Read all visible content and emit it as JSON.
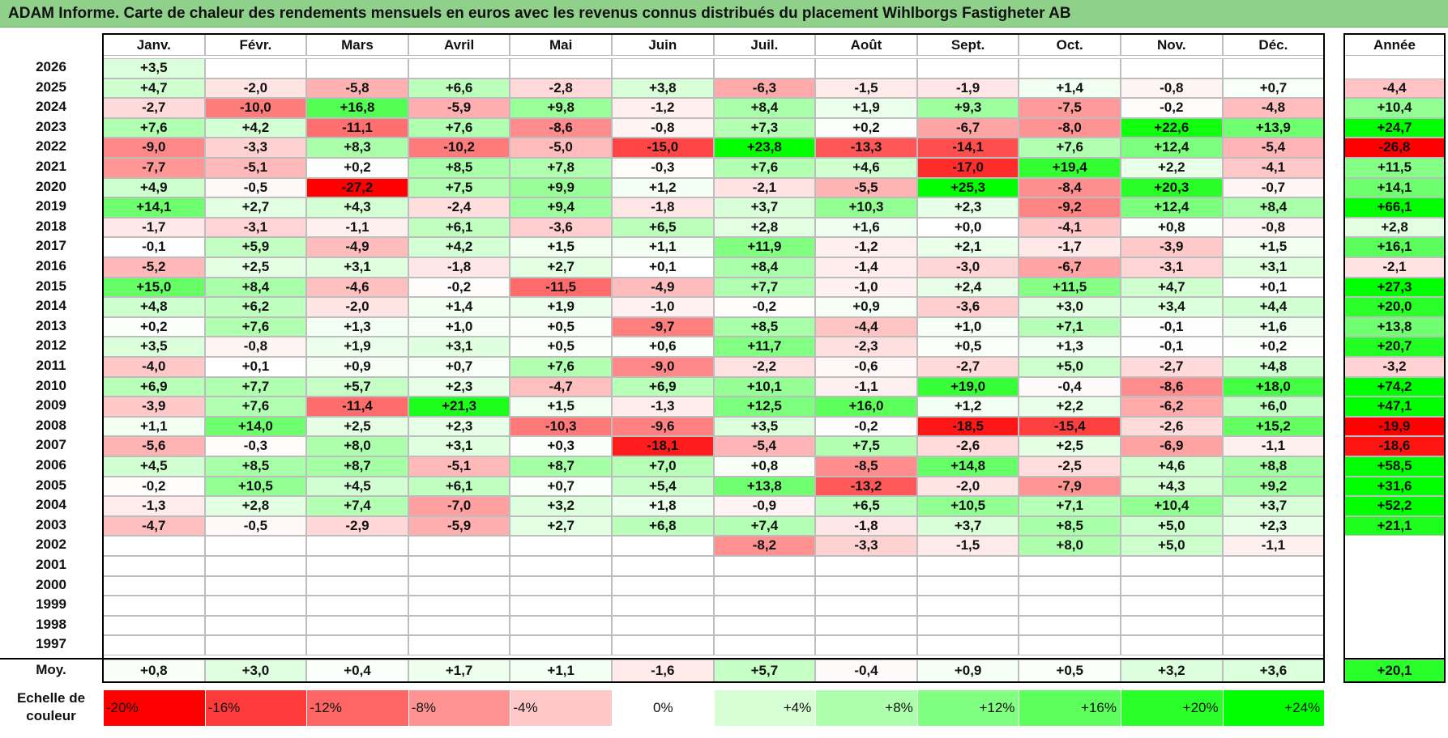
{
  "title": "ADAM Informe. Carte de chaleur des rendements mensuels en euros avec les revenus connus distribués du placement Wihlborgs Fastigheter AB",
  "chart_data": {
    "type": "heatmap",
    "title": "ADAM Informe. Carte de chaleur des rendements mensuels en euros avec les revenus connus distribués du placement Wihlborgs Fastigheter AB",
    "months": [
      "Janv.",
      "Févr.",
      "Mars",
      "Avril",
      "Mai",
      "Juin",
      "Juil.",
      "Août",
      "Sept.",
      "Oct.",
      "Nov.",
      "Déc."
    ],
    "year_header": "Année",
    "rows": [
      {
        "year": "2026",
        "values": [
          "+3,5",
          "",
          "",
          "",
          "",
          "",
          "",
          "",
          "",
          "",
          "",
          ""
        ],
        "annual": ""
      },
      {
        "year": "2025",
        "values": [
          "+4,7",
          "-2,0",
          "-5,8",
          "+6,6",
          "-2,8",
          "+3,8",
          "-6,3",
          "-1,5",
          "-1,9",
          "+1,4",
          "-0,8",
          "+0,7"
        ],
        "annual": "-4,4"
      },
      {
        "year": "2024",
        "values": [
          "-2,7",
          "-10,0",
          "+16,8",
          "-5,9",
          "+9,8",
          "-1,2",
          "+8,4",
          "+1,9",
          "+9,3",
          "-7,5",
          "-0,2",
          "-4,8"
        ],
        "annual": "+10,4"
      },
      {
        "year": "2023",
        "values": [
          "+7,6",
          "+4,2",
          "-11,1",
          "+7,6",
          "-8,6",
          "-0,8",
          "+7,3",
          "+0,2",
          "-6,7",
          "-8,0",
          "+22,6",
          "+13,9"
        ],
        "annual": "+24,7"
      },
      {
        "year": "2022",
        "values": [
          "-9,0",
          "-3,3",
          "+8,3",
          "-10,2",
          "-5,0",
          "-15,0",
          "+23,8",
          "-13,3",
          "-14,1",
          "+7,6",
          "+12,4",
          "-5,4"
        ],
        "annual": "-26,8"
      },
      {
        "year": "2021",
        "values": [
          "-7,7",
          "-5,1",
          "+0,2",
          "+8,5",
          "+7,8",
          "-0,3",
          "+7,6",
          "+4,6",
          "-17,0",
          "+19,4",
          "+2,2",
          "-4,1"
        ],
        "annual": "+11,5"
      },
      {
        "year": "2020",
        "values": [
          "+4,9",
          "-0,5",
          "-27,2",
          "+7,5",
          "+9,9",
          "+1,2",
          "-2,1",
          "-5,5",
          "+25,3",
          "-8,4",
          "+20,3",
          "-0,7"
        ],
        "annual": "+14,1"
      },
      {
        "year": "2019",
        "values": [
          "+14,1",
          "+2,7",
          "+4,3",
          "-2,4",
          "+9,4",
          "-1,8",
          "+3,7",
          "+10,3",
          "+2,3",
          "-9,2",
          "+12,4",
          "+8,4"
        ],
        "annual": "+66,1"
      },
      {
        "year": "2018",
        "values": [
          "-1,7",
          "-3,1",
          "-1,1",
          "+6,1",
          "-3,6",
          "+6,5",
          "+2,8",
          "+1,6",
          "+0,0",
          "-4,1",
          "+0,8",
          "-0,8"
        ],
        "annual": "+2,8"
      },
      {
        "year": "2017",
        "values": [
          "-0,1",
          "+5,9",
          "-4,9",
          "+4,2",
          "+1,5",
          "+1,1",
          "+11,9",
          "-1,2",
          "+2,1",
          "-1,7",
          "-3,9",
          "+1,5"
        ],
        "annual": "+16,1"
      },
      {
        "year": "2016",
        "values": [
          "-5,2",
          "+2,5",
          "+3,1",
          "-1,8",
          "+2,7",
          "+0,1",
          "+8,4",
          "-1,4",
          "-3,0",
          "-6,7",
          "-3,1",
          "+3,1"
        ],
        "annual": "-2,1"
      },
      {
        "year": "2015",
        "values": [
          "+15,0",
          "+8,4",
          "-4,6",
          "-0,2",
          "-11,5",
          "-4,9",
          "+7,7",
          "-1,0",
          "+2,4",
          "+11,5",
          "+4,7",
          "+0,1"
        ],
        "annual": "+27,3"
      },
      {
        "year": "2014",
        "values": [
          "+4,8",
          "+6,2",
          "-2,0",
          "+1,4",
          "+1,9",
          "-1,0",
          "-0,2",
          "+0,9",
          "-3,6",
          "+3,0",
          "+3,4",
          "+4,4"
        ],
        "annual": "+20,0"
      },
      {
        "year": "2013",
        "values": [
          "+0,2",
          "+7,6",
          "+1,3",
          "+1,0",
          "+0,5",
          "-9,7",
          "+8,5",
          "-4,4",
          "+1,0",
          "+7,1",
          "-0,1",
          "+1,6"
        ],
        "annual": "+13,8"
      },
      {
        "year": "2012",
        "values": [
          "+3,5",
          "-0,8",
          "+1,9",
          "+3,1",
          "+0,5",
          "+0,6",
          "+11,7",
          "-2,3",
          "+0,5",
          "+1,3",
          "-0,1",
          "+0,2"
        ],
        "annual": "+20,7"
      },
      {
        "year": "2011",
        "values": [
          "-4,0",
          "+0,1",
          "+0,9",
          "+0,7",
          "+7,6",
          "-9,0",
          "-2,2",
          "-0,6",
          "-2,7",
          "+5,0",
          "-2,7",
          "+4,8"
        ],
        "annual": "-3,2"
      },
      {
        "year": "2010",
        "values": [
          "+6,9",
          "+7,7",
          "+5,7",
          "+2,3",
          "-4,7",
          "+6,9",
          "+10,1",
          "-1,1",
          "+19,0",
          "-0,4",
          "-8,6",
          "+18,0"
        ],
        "annual": "+74,2"
      },
      {
        "year": "2009",
        "values": [
          "-3,9",
          "+7,6",
          "-11,4",
          "+21,3",
          "+1,5",
          "-1,3",
          "+12,5",
          "+16,0",
          "+1,2",
          "+2,2",
          "-6,2",
          "+6,0"
        ],
        "annual": "+47,1"
      },
      {
        "year": "2008",
        "values": [
          "+1,1",
          "+14,0",
          "+2,5",
          "+2,3",
          "-10,3",
          "-9,6",
          "+3,5",
          "-0,2",
          "-18,5",
          "-15,4",
          "-2,6",
          "+15,2"
        ],
        "annual": "-19,9"
      },
      {
        "year": "2007",
        "values": [
          "-5,6",
          "-0,3",
          "+8,0",
          "+3,1",
          "+0,3",
          "-18,1",
          "-5,4",
          "+7,5",
          "-2,6",
          "+2,5",
          "-6,9",
          "-1,1"
        ],
        "annual": "-18,6"
      },
      {
        "year": "2006",
        "values": [
          "+4,5",
          "+8,5",
          "+8,7",
          "-5,1",
          "+8,7",
          "+7,0",
          "+0,8",
          "-8,5",
          "+14,8",
          "-2,5",
          "+4,6",
          "+8,8"
        ],
        "annual": "+58,5"
      },
      {
        "year": "2005",
        "values": [
          "-0,2",
          "+10,5",
          "+4,5",
          "+6,1",
          "+0,7",
          "+5,4",
          "+13,8",
          "-13,2",
          "-2,0",
          "-7,9",
          "+4,3",
          "+9,2"
        ],
        "annual": "+31,6"
      },
      {
        "year": "2004",
        "values": [
          "-1,3",
          "+2,8",
          "+7,4",
          "-7,0",
          "+3,2",
          "+1,8",
          "-0,9",
          "+6,5",
          "+10,5",
          "+7,1",
          "+10,4",
          "+3,7"
        ],
        "annual": "+52,2"
      },
      {
        "year": "2003",
        "values": [
          "-4,7",
          "-0,5",
          "-2,9",
          "-5,9",
          "+2,7",
          "+6,8",
          "+7,4",
          "-1,8",
          "+3,7",
          "+8,5",
          "+5,0",
          "+2,3"
        ],
        "annual": "+21,1"
      },
      {
        "year": "2002",
        "values": [
          "",
          "",
          "",
          "",
          "",
          "",
          "-8,2",
          "-3,3",
          "-1,5",
          "+8,0",
          "+5,0",
          "-1,1"
        ],
        "annual": ""
      },
      {
        "year": "2001",
        "values": [
          "",
          "",
          "",
          "",
          "",
          "",
          "",
          "",
          "",
          "",
          "",
          ""
        ],
        "annual": ""
      },
      {
        "year": "2000",
        "values": [
          "",
          "",
          "",
          "",
          "",
          "",
          "",
          "",
          "",
          "",
          "",
          ""
        ],
        "annual": ""
      },
      {
        "year": "1999",
        "values": [
          "",
          "",
          "",
          "",
          "",
          "",
          "",
          "",
          "",
          "",
          "",
          ""
        ],
        "annual": ""
      },
      {
        "year": "1998",
        "values": [
          "",
          "",
          "",
          "",
          "",
          "",
          "",
          "",
          "",
          "",
          "",
          ""
        ],
        "annual": ""
      },
      {
        "year": "1997",
        "values": [
          "",
          "",
          "",
          "",
          "",
          "",
          "",
          "",
          "",
          "",
          "",
          ""
        ],
        "annual": ""
      }
    ],
    "average": {
      "label": "Moy.",
      "values": [
        "+0,8",
        "+3,0",
        "+0,4",
        "+1,7",
        "+1,1",
        "-1,6",
        "+5,7",
        "-0,4",
        "+0,9",
        "+0,5",
        "+3,2",
        "+3,6"
      ],
      "annual": "+20,1"
    },
    "color_scale": {
      "label_line1": "Echelle de",
      "label_line2": "couleur",
      "steps": [
        "-20%",
        "-16%",
        "-12%",
        "-8%",
        "-4%",
        "0%",
        "+4%",
        "+8%",
        "+12%",
        "+16%",
        "+20%",
        "+24%"
      ],
      "colors": [
        "#ff0000",
        "#ff3a3a",
        "#ff6565",
        "#ff9393",
        "#ffc8c8",
        "#ffffff",
        "#d6ffd6",
        "#adffad",
        "#80ff80",
        "#5cff5c",
        "#2aff2a",
        "#00ff00"
      ],
      "neutral_color": "#ffffff"
    }
  }
}
